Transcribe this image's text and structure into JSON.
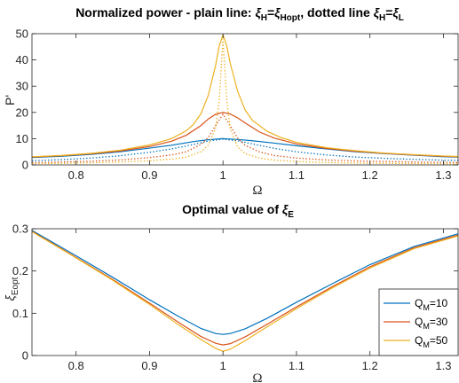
{
  "chart_data": [
    {
      "type": "line",
      "title_parts": {
        "prefix": "Normalized power - plain line: ",
        "xi1": "ξ",
        "sub1": "H",
        "eq1": "=",
        "xi2": "ξ",
        "sub2": "Hopt",
        "mid": ", dotted line ",
        "xi3": "ξ",
        "sub3": "H",
        "eq2": "=",
        "xi4": "ξ",
        "sub4": "L"
      },
      "xlabel": "Ω",
      "ylabel": "P'",
      "xlim": [
        0.74,
        1.32
      ],
      "ylim": [
        0,
        50
      ],
      "xticks": [
        0.8,
        0.9,
        1.0,
        1.1,
        1.2,
        1.3
      ],
      "xtick_labels": [
        "0.8",
        "0.9",
        "1",
        "1.1",
        "1.2",
        "1.3"
      ],
      "yticks": [
        0,
        10,
        20,
        30,
        40,
        50
      ],
      "ytick_labels": [
        "0",
        "10",
        "20",
        "30",
        "40",
        "50"
      ],
      "series": [
        {
          "Q": 10,
          "color": "#0072BD",
          "style": "solid",
          "x": [
            0.74,
            0.78,
            0.82,
            0.86,
            0.9,
            0.93,
            0.96,
            0.98,
            1.0,
            1.02,
            1.04,
            1.07,
            1.1,
            1.14,
            1.18,
            1.22,
            1.26,
            1.3,
            1.32
          ],
          "y": [
            2.8,
            3.3,
            4.0,
            5.0,
            6.4,
            7.5,
            8.9,
            9.6,
            10.0,
            9.7,
            9.2,
            8.3,
            7.3,
            6.1,
            5.0,
            4.3,
            3.7,
            3.1,
            3.0
          ]
        },
        {
          "Q": 30,
          "color": "#D95319",
          "style": "solid",
          "x": [
            0.74,
            0.78,
            0.82,
            0.86,
            0.9,
            0.93,
            0.95,
            0.97,
            0.98,
            0.99,
            1.0,
            1.01,
            1.02,
            1.03,
            1.05,
            1.07,
            1.1,
            1.14,
            1.18,
            1.22,
            1.26,
            1.3,
            1.32
          ],
          "y": [
            3.0,
            3.5,
            4.2,
            5.3,
            7.0,
            9.0,
            11.3,
            15.0,
            17.5,
            19.3,
            20.0,
            19.4,
            17.9,
            16.0,
            12.5,
            10.2,
            8.0,
            6.3,
            5.2,
            4.4,
            3.8,
            3.3,
            3.1
          ]
        },
        {
          "Q": 50,
          "color": "#EDB120",
          "style": "solid",
          "x": [
            0.74,
            0.78,
            0.82,
            0.86,
            0.9,
            0.93,
            0.95,
            0.96,
            0.97,
            0.98,
            0.99,
            0.995,
            1.0,
            1.005,
            1.01,
            1.02,
            1.03,
            1.04,
            1.06,
            1.08,
            1.1,
            1.14,
            1.18,
            1.22,
            1.26,
            1.3,
            1.32
          ],
          "y": [
            3.1,
            3.6,
            4.4,
            5.6,
            7.6,
            10.0,
            13.0,
            15.5,
            19.5,
            26.5,
            38.0,
            45.5,
            49.5,
            45.5,
            38.5,
            28.0,
            21.0,
            17.0,
            12.8,
            10.3,
            8.6,
            6.6,
            5.4,
            4.5,
            3.9,
            3.4,
            3.2
          ]
        },
        {
          "Q": 10,
          "color": "#0072BD",
          "style": "dotted",
          "x": [
            0.74,
            0.78,
            0.82,
            0.86,
            0.9,
            0.93,
            0.96,
            0.98,
            1.0,
            1.02,
            1.04,
            1.07,
            1.1,
            1.14,
            1.18,
            1.22,
            1.26,
            1.3,
            1.32
          ],
          "y": [
            1.6,
            2.0,
            2.6,
            3.5,
            4.8,
            6.1,
            7.8,
            9.1,
            9.8,
            9.2,
            8.0,
            6.3,
            5.0,
            3.8,
            3.0,
            2.5,
            2.1,
            1.8,
            1.7
          ]
        },
        {
          "Q": 30,
          "color": "#D95319",
          "style": "dotted",
          "x": [
            0.74,
            0.78,
            0.82,
            0.86,
            0.9,
            0.93,
            0.95,
            0.97,
            0.98,
            0.99,
            1.0,
            1.01,
            1.02,
            1.03,
            1.05,
            1.07,
            1.1,
            1.14,
            1.18,
            1.22,
            1.26,
            1.3,
            1.32
          ],
          "y": [
            0.9,
            1.1,
            1.4,
            1.9,
            2.8,
            3.8,
            5.0,
            7.8,
            10.5,
            15.0,
            19.3,
            14.8,
            10.2,
            7.5,
            4.9,
            3.6,
            2.6,
            1.9,
            1.5,
            1.3,
            1.1,
            1.0,
            0.9
          ]
        },
        {
          "Q": 50,
          "color": "#EDB120",
          "style": "dotted",
          "x": [
            0.74,
            0.78,
            0.82,
            0.86,
            0.9,
            0.93,
            0.95,
            0.97,
            0.98,
            0.99,
            0.995,
            1.0,
            1.005,
            1.01,
            1.02,
            1.03,
            1.05,
            1.07,
            1.1,
            1.14,
            1.18,
            1.22,
            1.26,
            1.3,
            1.32
          ],
          "y": [
            0.5,
            0.6,
            0.8,
            1.1,
            1.6,
            2.2,
            3.0,
            5.0,
            7.5,
            14.0,
            25.0,
            48.0,
            25.0,
            13.5,
            6.8,
            4.3,
            2.6,
            1.8,
            1.3,
            0.9,
            0.7,
            0.6,
            0.5,
            0.5,
            0.4
          ]
        }
      ]
    },
    {
      "type": "line",
      "title_parts": {
        "prefix": "Optimal value of ",
        "xi": "ξ",
        "sub": "E"
      },
      "xlabel": "Ω",
      "ylabel_parts": {
        "xi": "ξ",
        "sub": "Eopt"
      },
      "xlim": [
        0.74,
        1.32
      ],
      "ylim": [
        0,
        0.3
      ],
      "xticks": [
        0.8,
        0.9,
        1.0,
        1.1,
        1.2,
        1.3
      ],
      "xtick_labels": [
        "0.8",
        "0.9",
        "1",
        "1.1",
        "1.2",
        "1.3"
      ],
      "yticks": [
        0,
        0.1,
        0.2,
        0.3
      ],
      "ytick_labels": [
        "0",
        "0.1",
        "0.2",
        "0.3"
      ],
      "legend_position": "bottom-right",
      "series": [
        {
          "name_main": "Q",
          "name_sub": "M",
          "name_rest": "=10",
          "color": "#0072BD",
          "x": [
            0.74,
            0.8,
            0.85,
            0.9,
            0.94,
            0.97,
            0.99,
            1.0,
            1.01,
            1.03,
            1.06,
            1.1,
            1.15,
            1.2,
            1.26,
            1.32
          ],
          "y": [
            0.296,
            0.236,
            0.185,
            0.132,
            0.092,
            0.064,
            0.052,
            0.05,
            0.052,
            0.063,
            0.088,
            0.126,
            0.171,
            0.215,
            0.258,
            0.288
          ]
        },
        {
          "name_main": "Q",
          "name_sub": "M",
          "name_rest": "=30",
          "color": "#D95319",
          "x": [
            0.74,
            0.8,
            0.85,
            0.9,
            0.94,
            0.97,
            0.99,
            1.0,
            1.01,
            1.03,
            1.06,
            1.1,
            1.15,
            1.2,
            1.26,
            1.32
          ],
          "y": [
            0.294,
            0.232,
            0.18,
            0.124,
            0.078,
            0.045,
            0.029,
            0.025,
            0.028,
            0.044,
            0.074,
            0.115,
            0.164,
            0.21,
            0.255,
            0.285
          ]
        },
        {
          "name_main": "Q",
          "name_sub": "M",
          "name_rest": "=50",
          "color": "#EDB120",
          "x": [
            0.74,
            0.8,
            0.85,
            0.9,
            0.94,
            0.97,
            0.99,
            1.0,
            1.01,
            1.03,
            1.06,
            1.1,
            1.15,
            1.2,
            1.26,
            1.32
          ],
          "y": [
            0.293,
            0.231,
            0.178,
            0.121,
            0.072,
            0.038,
            0.017,
            0.01,
            0.015,
            0.035,
            0.068,
            0.111,
            0.161,
            0.207,
            0.253,
            0.283
          ]
        }
      ]
    }
  ]
}
